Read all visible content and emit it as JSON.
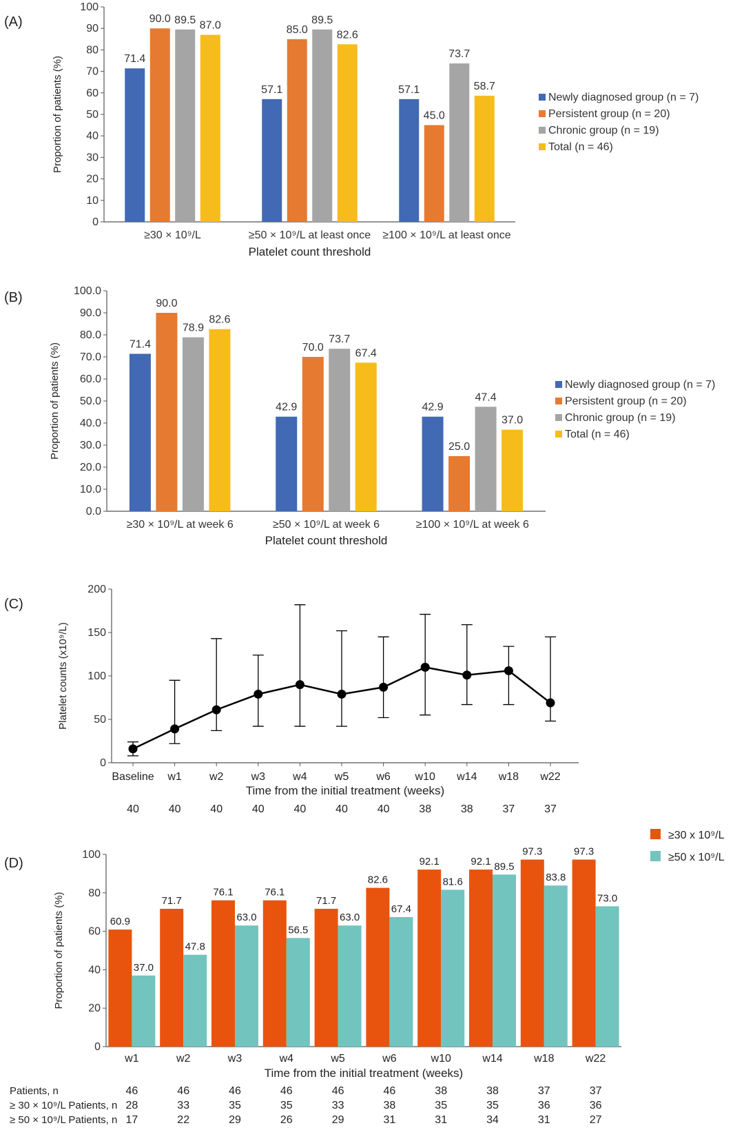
{
  "colors": {
    "newly": "#4169b4",
    "persistent": "#e57a30",
    "chronic": "#a5a5a5",
    "total": "#f5bc1b",
    "ge30": "#e8530e",
    "ge50": "#72c4bf",
    "line": "#000000",
    "axis": "#555555"
  },
  "chart_data": [
    {
      "panel": "(A)",
      "type": "bar",
      "title": "",
      "xlabel": "Platelet count threshold",
      "ylabel": "Proportion of patients (%)",
      "ylim": [
        0,
        100
      ],
      "yticks": [
        "0",
        "10",
        "20",
        "30",
        "40",
        "50",
        "60",
        "70",
        "80",
        "90",
        "100"
      ],
      "categories": [
        "≥30 × 10⁹/L",
        "≥50 × 10⁹/L at least once",
        "≥100 × 10⁹/L at least once"
      ],
      "series": [
        {
          "name": "Newly diagnosed group (n = 7)",
          "values": [
            71.4,
            57.1,
            57.1
          ],
          "labels": [
            "71.4",
            "57.1",
            "57.1"
          ]
        },
        {
          "name": "Persistent group (n = 20)",
          "values": [
            90.0,
            85.0,
            45.0
          ],
          "labels": [
            "90.0",
            "85.0",
            "45.0"
          ]
        },
        {
          "name": "Chronic group (n = 19)",
          "values": [
            89.5,
            89.5,
            73.7
          ],
          "labels": [
            "89.5",
            "89.5",
            "73.7"
          ]
        },
        {
          "name": "Total (n = 46)",
          "values": [
            87.0,
            82.6,
            58.7
          ],
          "labels": [
            "87.0",
            "82.6",
            "58.7"
          ]
        }
      ],
      "legend": [
        "Newly diagnosed group (n = 7)",
        "Persistent group (n = 20)",
        "Chronic group (n = 19)",
        "Total (n = 46)"
      ],
      "legend_position": "right"
    },
    {
      "panel": "(B)",
      "type": "bar",
      "title": "",
      "xlabel": "Platelet count threshold",
      "ylabel": "Proportion of patients (%)",
      "ylim": [
        0,
        100
      ],
      "yticks": [
        "0.0",
        "10.0",
        "20.0",
        "30.0",
        "40.0",
        "50.0",
        "60.0",
        "70.0",
        "80.0",
        "90.0",
        "100.0"
      ],
      "categories": [
        "≥30 × 10⁹/L at week 6",
        "≥50 × 10⁹/L at week 6",
        "≥100 × 10⁹/L at week 6"
      ],
      "series": [
        {
          "name": "Newly diagnosed group (n = 7)",
          "values": [
            71.4,
            42.9,
            42.9
          ],
          "labels": [
            "71.4",
            "42.9",
            "42.9"
          ]
        },
        {
          "name": "Persistent group (n = 20)",
          "values": [
            90.0,
            70.0,
            25.0
          ],
          "labels": [
            "90.0",
            "70.0",
            "25.0"
          ]
        },
        {
          "name": "Chronic group (n = 19)",
          "values": [
            78.9,
            73.7,
            47.4
          ],
          "labels": [
            "78.9",
            "73.7",
            "47.4"
          ]
        },
        {
          "name": "Total (n = 46)",
          "values": [
            82.6,
            67.4,
            37.0
          ],
          "labels": [
            "82.6",
            "67.4",
            "37.0"
          ]
        }
      ],
      "legend": [
        "Newly diagnosed group (n = 7)",
        "Persistent group (n = 20)",
        "Chronic group (n = 19)",
        "Total (n = 46)"
      ],
      "legend_position": "right"
    },
    {
      "panel": "(C)",
      "type": "line",
      "title": "",
      "xlabel": "Time from the initial treatment (weeks)",
      "ylabel": "Platelet counts (x10⁹/L)",
      "ylim": [
        0,
        200
      ],
      "yticks": [
        "0",
        "50",
        "100",
        "150",
        "200"
      ],
      "categories": [
        "Baseline",
        "w1",
        "w2",
        "w3",
        "w4",
        "w5",
        "w6",
        "w10",
        "w14",
        "w18",
        "w22"
      ],
      "values": [
        16,
        39,
        61,
        79,
        90,
        79,
        87,
        110,
        101,
        106,
        69
      ],
      "error_low": [
        8,
        22,
        37,
        42,
        42,
        42,
        52,
        55,
        67,
        67,
        48
      ],
      "error_high": [
        24,
        95,
        143,
        124,
        182,
        152,
        145,
        171,
        159,
        134,
        145
      ],
      "n_row": [
        "40",
        "40",
        "40",
        "40",
        "40",
        "40",
        "40",
        "38",
        "38",
        "37",
        "37"
      ]
    },
    {
      "panel": "(D)",
      "type": "bar",
      "title": "",
      "xlabel": "Time from the initial treatment (weeks)",
      "ylabel": "Proportion of patients (%)",
      "ylim": [
        0,
        100
      ],
      "yticks": [
        "0",
        "20",
        "40",
        "60",
        "80",
        "100"
      ],
      "categories": [
        "w1",
        "w2",
        "w3",
        "w4",
        "w5",
        "w6",
        "w10",
        "w14",
        "w18",
        "w22"
      ],
      "series": [
        {
          "name": "≥30 x 10⁹/L",
          "values": [
            60.9,
            71.7,
            76.1,
            76.1,
            71.7,
            82.6,
            92.1,
            92.1,
            97.3,
            97.3
          ],
          "labels": [
            "60.9",
            "71.7",
            "76.1",
            "76.1",
            "71.7",
            "82.6",
            "92.1",
            "92.1",
            "97.3",
            "97.3"
          ]
        },
        {
          "name": "≥50 x 10⁹/L",
          "values": [
            37.0,
            47.8,
            63.0,
            56.5,
            63.0,
            67.4,
            81.6,
            89.5,
            83.8,
            73.0
          ],
          "labels": [
            "37.0",
            "47.8",
            "63.0",
            "56.5",
            "63.0",
            "67.4",
            "81.6",
            "89.5",
            "83.8",
            "73.0"
          ]
        }
      ],
      "legend": [
        "≥30 x 10⁹/L",
        "≥50 x 10⁹/L"
      ],
      "legend_position": "top-right",
      "table": [
        {
          "label": "Patients, n",
          "values": [
            "46",
            "46",
            "46",
            "46",
            "46",
            "46",
            "38",
            "38",
            "37",
            "37"
          ]
        },
        {
          "label": "≥ 30 × 10⁹/L Patients, n",
          "values": [
            "28",
            "33",
            "35",
            "35",
            "33",
            "38",
            "35",
            "35",
            "36",
            "36"
          ]
        },
        {
          "label": "≥ 50 × 10⁹/L Patients, n",
          "values": [
            "17",
            "22",
            "29",
            "26",
            "29",
            "31",
            "31",
            "34",
            "31",
            "27"
          ]
        }
      ]
    }
  ]
}
